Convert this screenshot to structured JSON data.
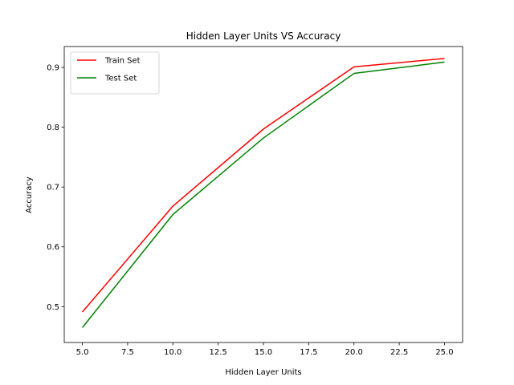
{
  "chart_data": {
    "type": "line",
    "title": "Hidden Layer Units VS Accuracy",
    "xlabel": "Hidden Layer Units",
    "ylabel": "Accuracy",
    "x": [
      5,
      10,
      15,
      20,
      25
    ],
    "xlim": [
      4,
      26
    ],
    "ylim": [
      0.44,
      0.935
    ],
    "xticks": [
      "5.0",
      "7.5",
      "10.0",
      "12.5",
      "15.0",
      "17.5",
      "20.0",
      "22.5",
      "25.0"
    ],
    "yticks": [
      "0.5",
      "0.6",
      "0.7",
      "0.8",
      "0.9"
    ],
    "grid": false,
    "legend_position": "top-left",
    "series": [
      {
        "name": "Train Set",
        "color": "#ff0000",
        "values": [
          0.491,
          0.668,
          0.797,
          0.901,
          0.915
        ]
      },
      {
        "name": "Test Set",
        "color": "#008000",
        "values": [
          0.465,
          0.654,
          0.782,
          0.89,
          0.909
        ]
      }
    ]
  }
}
